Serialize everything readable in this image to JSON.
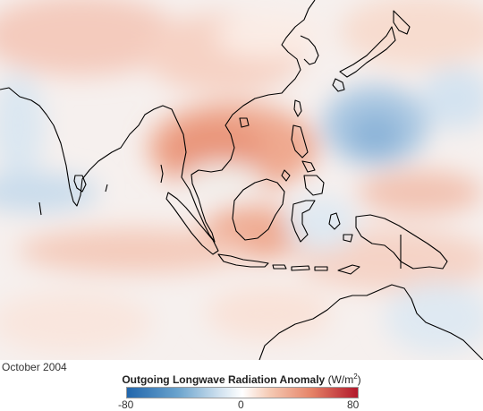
{
  "map": {
    "date_label": "October 2004",
    "legend": {
      "title": "Outgoing Longwave Radiation Anomaly",
      "unit_prefix": "(W/m",
      "unit_exp": "2",
      "unit_suffix": ")",
      "min": "-80",
      "mid": "0",
      "max": "80",
      "color_low": "#2166ac",
      "color_mid": "#ffffff",
      "color_high": "#b2182b"
    }
  }
}
